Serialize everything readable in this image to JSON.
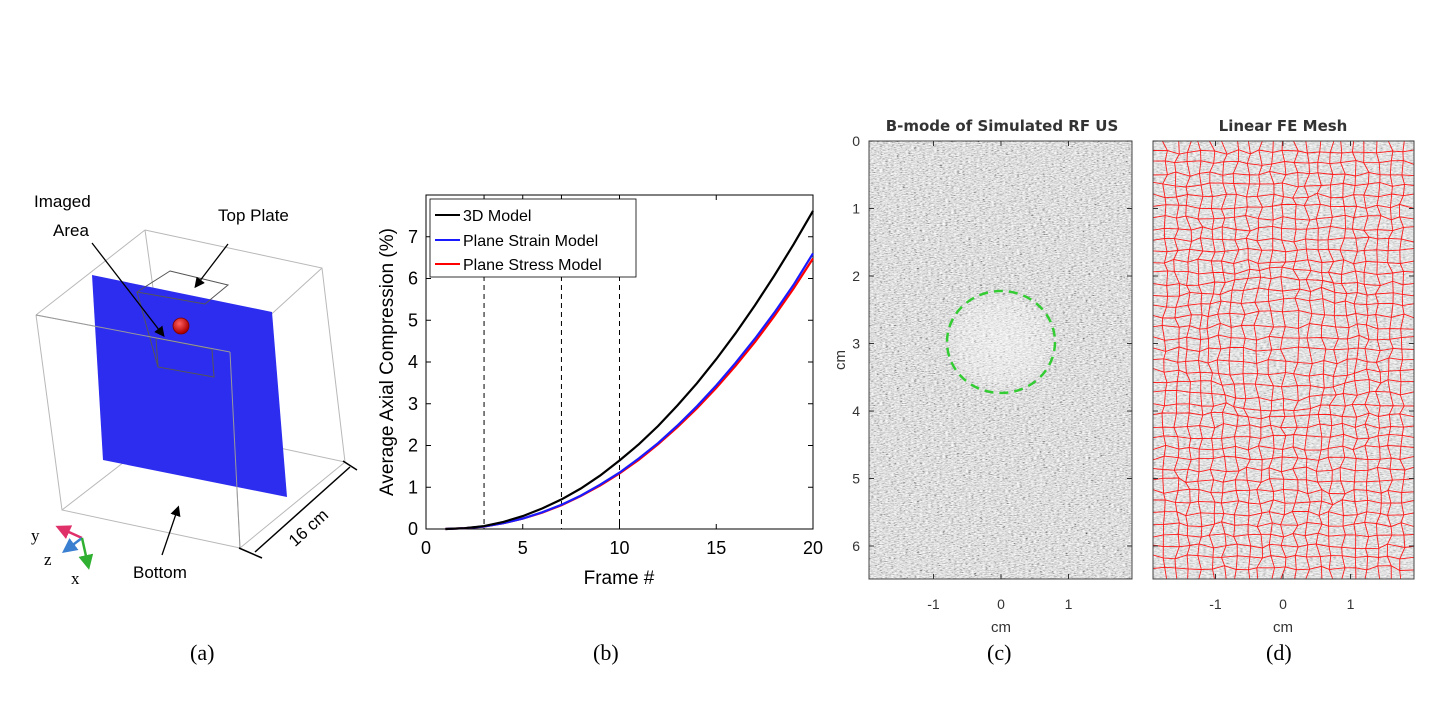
{
  "panel_a": {
    "caption": "(a)",
    "labels": {
      "imaged_area_line1": "Imaged",
      "imaged_area_line2": "Area",
      "top_plate": "Top Plate",
      "bottom": "Bottom",
      "dimension": "16 cm",
      "axis_y": "y",
      "axis_z": "z",
      "axis_x": "x"
    },
    "colors": {
      "plane": "#2d2df0",
      "inclusion": "#e01010",
      "axis_y": "#e0306a",
      "axis_z": "#3a7fd0",
      "axis_x": "#30b030"
    }
  },
  "panel_b": {
    "caption": "(b)",
    "chart_data": {
      "type": "line",
      "title": "",
      "xlabel": "Frame #",
      "ylabel": "Average Axial Compression (%)",
      "xlim": [
        0,
        20
      ],
      "ylim": [
        0,
        8
      ],
      "xticks": [
        0,
        5,
        10,
        15,
        20
      ],
      "yticks": [
        0,
        1,
        2,
        3,
        4,
        5,
        6,
        7
      ],
      "vlines": [
        3,
        7,
        10
      ],
      "legend_position": "top-left",
      "series": [
        {
          "name": "3D Model",
          "color": "#000000",
          "x": [
            1,
            2,
            3,
            4,
            5,
            6,
            7,
            8,
            9,
            10,
            11,
            12,
            13,
            14,
            15,
            16,
            17,
            18,
            19,
            20
          ],
          "y": [
            0.0,
            0.02,
            0.07,
            0.17,
            0.31,
            0.49,
            0.71,
            0.97,
            1.28,
            1.64,
            2.03,
            2.47,
            2.96,
            3.49,
            4.07,
            4.69,
            5.36,
            6.07,
            6.82,
            7.62
          ]
        },
        {
          "name": "Plane Strain Model",
          "color": "#1a1aff",
          "x": [
            1,
            2,
            3,
            4,
            5,
            6,
            7,
            8,
            9,
            10,
            11,
            12,
            13,
            14,
            15,
            16,
            17,
            18,
            19,
            20
          ],
          "y": [
            0.0,
            0.02,
            0.06,
            0.14,
            0.25,
            0.4,
            0.58,
            0.8,
            1.06,
            1.35,
            1.69,
            2.06,
            2.48,
            2.94,
            3.44,
            3.98,
            4.56,
            5.18,
            5.85,
            6.6
          ]
        },
        {
          "name": "Plane Stress Model",
          "color": "#ff0000",
          "x": [
            1,
            2,
            3,
            4,
            5,
            6,
            7,
            8,
            9,
            10,
            11,
            12,
            13,
            14,
            15,
            16,
            17,
            18,
            19,
            20
          ],
          "y": [
            0.0,
            0.02,
            0.06,
            0.14,
            0.25,
            0.39,
            0.57,
            0.79,
            1.04,
            1.33,
            1.66,
            2.03,
            2.44,
            2.89,
            3.38,
            3.91,
            4.48,
            5.1,
            5.76,
            6.48
          ]
        }
      ]
    }
  },
  "panel_c": {
    "caption": "(c)",
    "title": "B-mode of Simulated RF US",
    "xlabel": "cm",
    "ylabel": "cm",
    "xticks": [
      "-1",
      "0",
      "1"
    ],
    "yticks": [
      "0",
      "1",
      "2",
      "3",
      "4",
      "5",
      "6"
    ],
    "inclusion_center_cm": [
      0,
      3
    ],
    "inclusion_radius_cm": 0.78,
    "inclusion_color": "#33cc33"
  },
  "panel_d": {
    "caption": "(d)",
    "title": "Linear FE Mesh",
    "xlabel": "cm",
    "xticks": [
      "-1",
      "0",
      "1"
    ],
    "mesh_color": "#ff1a1a"
  }
}
